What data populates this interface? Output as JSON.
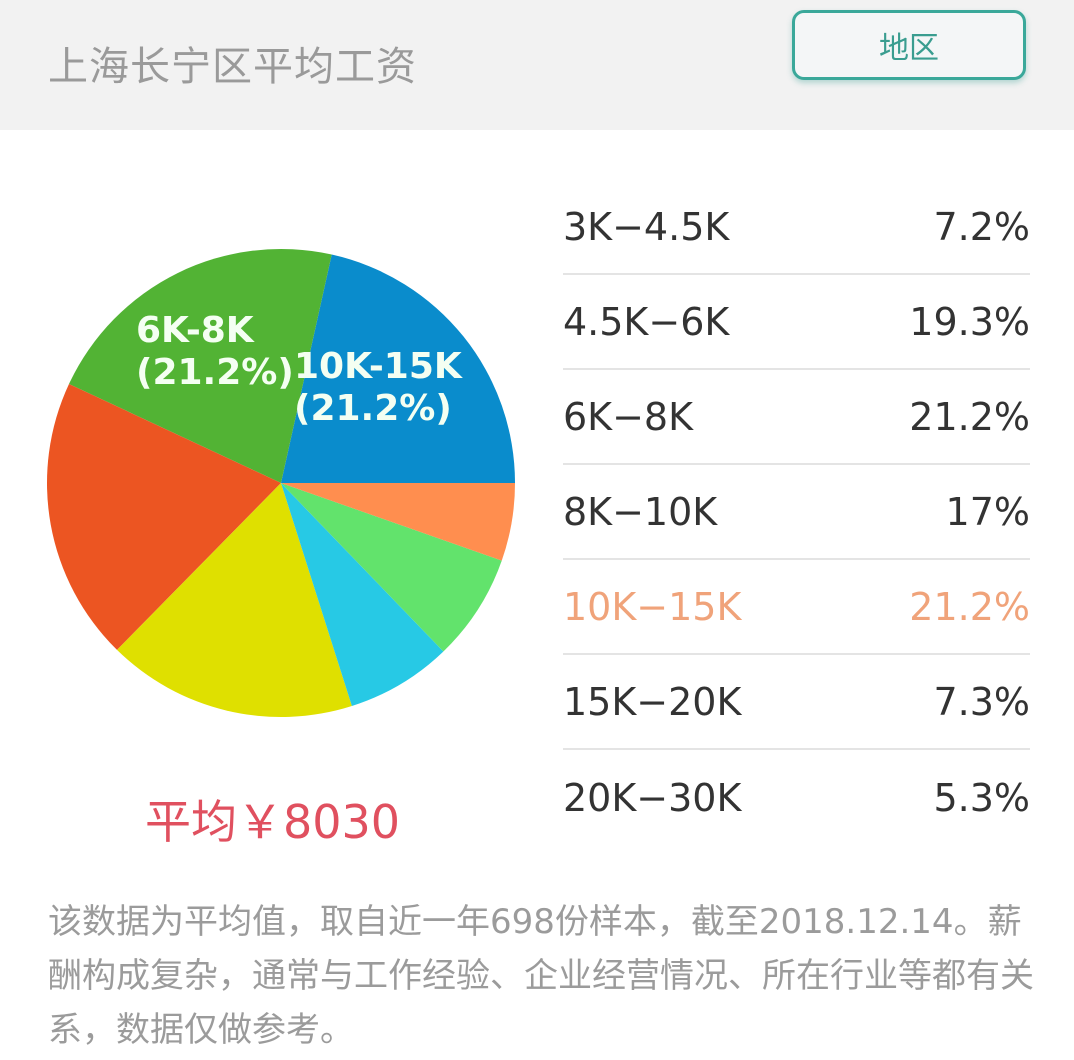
{
  "header": {
    "title": "上海长宁区平均工资",
    "region_button": "地区"
  },
  "pie_labels": {
    "label1_name": "6K-8K",
    "label1_pct": "(21.2%)",
    "label2_name": "10K-15K",
    "label2_pct": "(21.2%)"
  },
  "average": "平均￥8030",
  "legend": [
    {
      "range": "3K−4.5K",
      "pct": "7.2%"
    },
    {
      "range": "4.5K−6K",
      "pct": "19.3%"
    },
    {
      "range": "6K−8K",
      "pct": "21.2%"
    },
    {
      "range": "8K−10K",
      "pct": "17%"
    },
    {
      "range": "10K−15K",
      "pct": "21.2%",
      "highlight": true
    },
    {
      "range": "15K−20K",
      "pct": "7.3%"
    },
    {
      "range": "20K−30K",
      "pct": "5.3%"
    }
  ],
  "note": "该数据为平均值，取自近一年698份样本，截至2018.12.14。薪酬构成复杂，通常与工作经验、企业经营情况、所在行业等都有关系，数据仅做参考。",
  "colors": {
    "accent_teal": "#3aa89a",
    "highlight_orange": "#f0a37a",
    "average_red": "#e0505f"
  },
  "chart_data": {
    "type": "pie",
    "title": "上海长宁区平均工资",
    "categories": [
      "10K-15K",
      "6K-8K",
      "4.5K-6K",
      "8K-10K",
      "3K-4.5K",
      "15K-20K",
      "20K-30K"
    ],
    "values": [
      21.2,
      21.2,
      19.3,
      17.0,
      7.2,
      7.3,
      5.3
    ],
    "colors": [
      "#0a8ccc",
      "#52b334",
      "#ec5522",
      "#dfe000",
      "#27c9e5",
      "#62e36c",
      "#ff8e4f"
    ],
    "start_angle_deg": 0,
    "direction": "counterclockwise",
    "slice_labels_shown": [
      "10K-15K (21.2%)",
      "6K-8K (21.2%)"
    ],
    "legend_order": [
      "3K-4.5K",
      "4.5K-6K",
      "6K-8K",
      "8K-10K",
      "10K-15K",
      "15K-20K",
      "20K-30K"
    ],
    "average": 8030,
    "sample_count": 698,
    "as_of": "2018.12.14"
  }
}
